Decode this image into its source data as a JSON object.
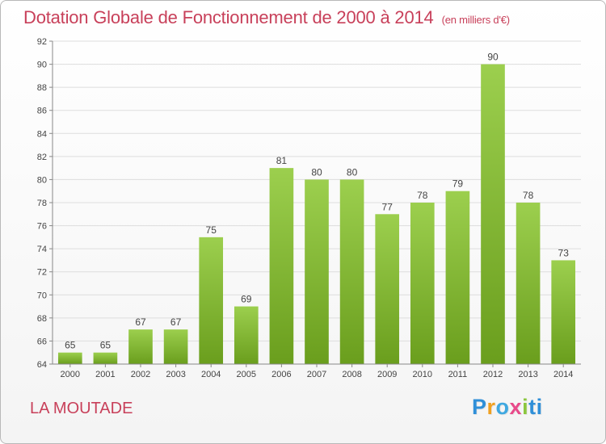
{
  "header": {
    "title": "Dotation Globale de Fonctionnement de 2000 à 2014",
    "unit": "(en milliers d'€)"
  },
  "commune": "LA MOUTADE",
  "logo": {
    "parts": [
      "P",
      "r",
      "o",
      "x",
      "i",
      "ti"
    ]
  },
  "colors": {
    "bar_top": "#9ccf4e",
    "bar_bottom": "#6a9e1d",
    "grid": "#dddddd",
    "title": "#c8405a"
  },
  "chart_data": {
    "type": "bar",
    "title": "Dotation Globale de Fonctionnement de 2000 à 2014",
    "subtitle": "(en milliers d'€)",
    "xlabel": "",
    "ylabel": "",
    "categories": [
      "2000",
      "2001",
      "2002",
      "2003",
      "2004",
      "2005",
      "2006",
      "2007",
      "2008",
      "2009",
      "2010",
      "2011",
      "2012",
      "2013",
      "2014"
    ],
    "values": [
      65,
      65,
      67,
      67,
      75,
      69,
      81,
      80,
      80,
      77,
      78,
      79,
      90,
      78,
      73
    ],
    "ylim": [
      64,
      92
    ],
    "yticks": [
      64,
      66,
      68,
      70,
      72,
      74,
      76,
      78,
      80,
      82,
      84,
      86,
      88,
      90,
      92
    ],
    "grid": true,
    "legend": "none"
  }
}
